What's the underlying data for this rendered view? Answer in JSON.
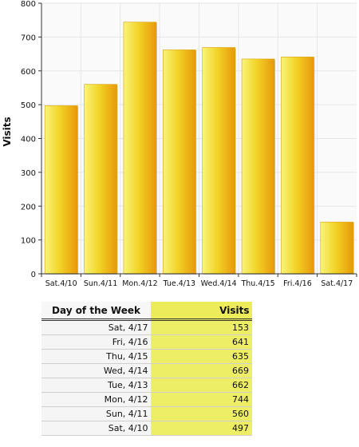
{
  "chart_data": {
    "type": "bar",
    "ylabel": "Visits",
    "xlabel": "",
    "ylim": [
      0,
      800
    ],
    "yticks": [
      0,
      100,
      200,
      300,
      400,
      500,
      600,
      700,
      800
    ],
    "categories": [
      "Sat.4/10",
      "Sun.4/11",
      "Mon.4/12",
      "Tue.4/13",
      "Wed.4/14",
      "Thu.4/15",
      "Fri.4/16",
      "Sat.4/17"
    ],
    "values": [
      497,
      560,
      744,
      662,
      669,
      635,
      641,
      153
    ],
    "grid": true,
    "colors": {
      "bar_light": "#f6f06a",
      "bar_dark": "#e99a06",
      "grid": "#e6e6e6"
    }
  },
  "table": {
    "col_day": "Day of the Week",
    "col_visits": "Visits",
    "rows": [
      {
        "day": "Sat, 4/17",
        "visits": "153"
      },
      {
        "day": "Fri, 4/16",
        "visits": "641"
      },
      {
        "day": "Thu, 4/15",
        "visits": "635"
      },
      {
        "day": "Wed, 4/14",
        "visits": "669"
      },
      {
        "day": "Tue, 4/13",
        "visits": "662"
      },
      {
        "day": "Mon, 4/12",
        "visits": "744"
      },
      {
        "day": "Sun, 4/11",
        "visits": "560"
      },
      {
        "day": "Sat, 4/10",
        "visits": "497"
      }
    ]
  }
}
